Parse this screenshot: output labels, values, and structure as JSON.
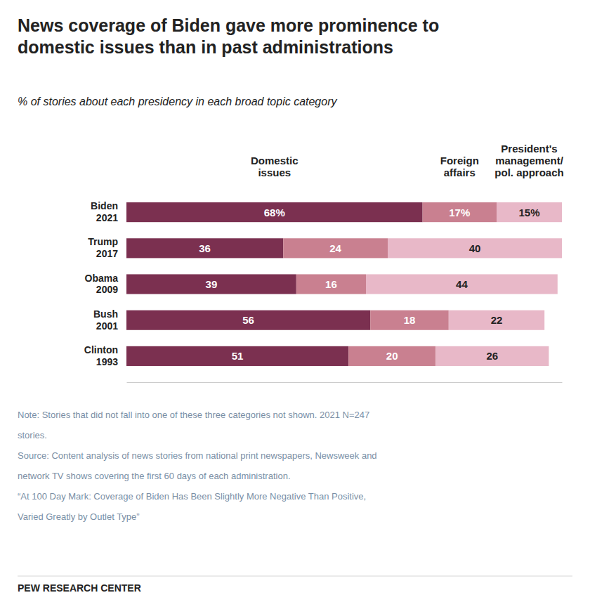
{
  "chart_data": {
    "type": "bar",
    "orientation": "horizontal",
    "stacked": true,
    "data_labels": true,
    "tick_labels": "y",
    "title": "News coverage of Biden gave more prominence to\ndomestic issues than in past administrations",
    "subtitle": "% of stories about each presidency in each broad topic category",
    "categories": [
      "Biden\n2021",
      "Trump\n2017",
      "Obama\n2009",
      "Bush\n2001",
      "Clinton\n1993"
    ],
    "series": [
      {
        "name": "Domestic\nissues",
        "color": "#7b3050",
        "values": [
          68,
          36,
          39,
          56,
          51
        ],
        "value_labels": [
          "68%",
          "36",
          "39",
          "56",
          "51"
        ]
      },
      {
        "name": "Foreign\naffairs",
        "color": "#c98090",
        "values": [
          17,
          24,
          16,
          18,
          20
        ],
        "value_labels": [
          "17%",
          "24",
          "16",
          "18",
          "20"
        ]
      },
      {
        "name": "President's\nmanagement/\npol. approach",
        "color": "#e8b8c8",
        "values": [
          15,
          40,
          44,
          22,
          26
        ],
        "value_labels": [
          "15%",
          "40",
          "44",
          "22",
          "26"
        ]
      }
    ],
    "xlim": [
      0,
      100
    ],
    "annotations": [
      "Note: Stories that did not fall into one of these three categories not shown. 2021 N=247",
      "stories.",
      "Source: Content analysis of news stories from national print newspapers, Newsweek and",
      "network TV shows covering the first 60 days of each administration.",
      "“At 100 Day Mark: Coverage of Biden Has Been Slightly More Negative Than Positive,",
      "Varied Greatly by Outlet Type”",
      "PEW RESEARCH CENTER"
    ]
  }
}
